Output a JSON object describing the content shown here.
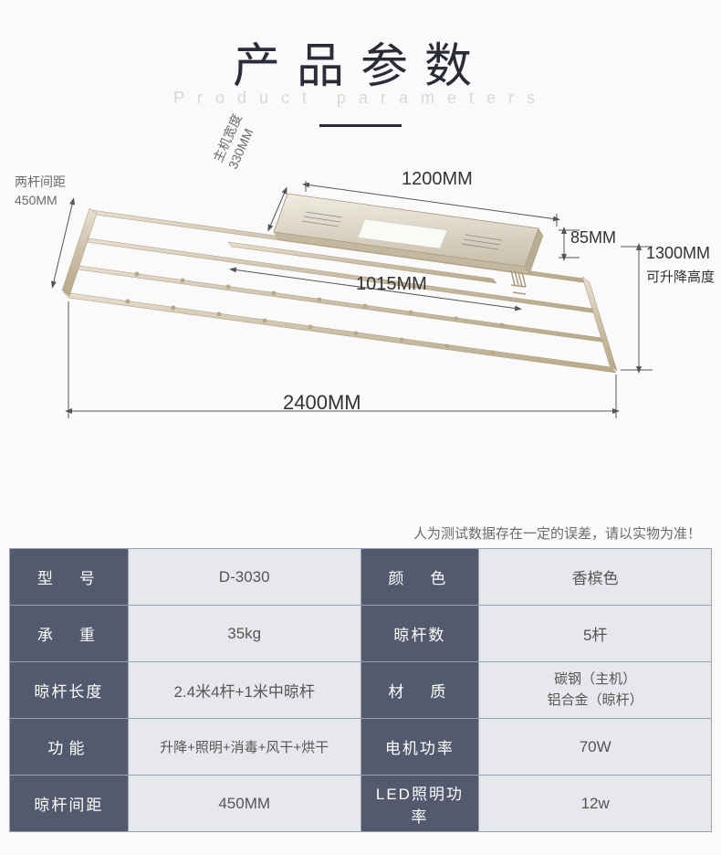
{
  "title": {
    "main": "产品参数",
    "sub": "Product parameters"
  },
  "dimensions": {
    "rod_spacing_label": "两杆间距",
    "rod_spacing": "450MM",
    "host_width_label": "主机宽度",
    "host_width": "330MM",
    "top_length": "1200MM",
    "middle_length": "1015MM",
    "full_length": "2400MM",
    "height": "85MM",
    "drop": "1300MM",
    "drop_label": "可升降高度"
  },
  "note": "人为测试数据存在一定的误差，请以实物为准！",
  "specs": {
    "rows": [
      {
        "l1": "型　号",
        "v1": "D-3030",
        "l2": "颜　色",
        "v2": "香槟色",
        "tight1": false,
        "tight2": false
      },
      {
        "l1": "承　重",
        "v1": "35kg",
        "l2": "晾杆数",
        "v2": "5杆",
        "tight1": false,
        "tight2": true
      },
      {
        "l1": "晾杆长度",
        "v1": "2.4米4杆+1米中晾杆",
        "l2": "材　质",
        "v2": "碳钢（主机）<br>铝合金（晾杆）",
        "tight1": true,
        "tight2": false,
        "multiline": true
      },
      {
        "l1": "功能",
        "v1": "升降+照明+消毒+风干+烘干",
        "l2": "电机功率",
        "v2": "70W",
        "tight1": false,
        "tight2": true,
        "small1": true
      },
      {
        "l1": "晾杆间距",
        "v1": "450MM",
        "l2": "LED照明功率",
        "v2": "12w",
        "tight1": true,
        "tight2": true
      }
    ]
  },
  "colors": {
    "title": "#2a2d38",
    "subtitle": "#d8d8d8",
    "table_header_bg": "#535a6e",
    "table_value_bg": "#e6e8ec",
    "border": "#9aa1af",
    "rod_fill": "#cbbfa8",
    "rod_stroke": "#a89878",
    "host_fill": "#dcd3c4",
    "dim_line": "#555"
  }
}
